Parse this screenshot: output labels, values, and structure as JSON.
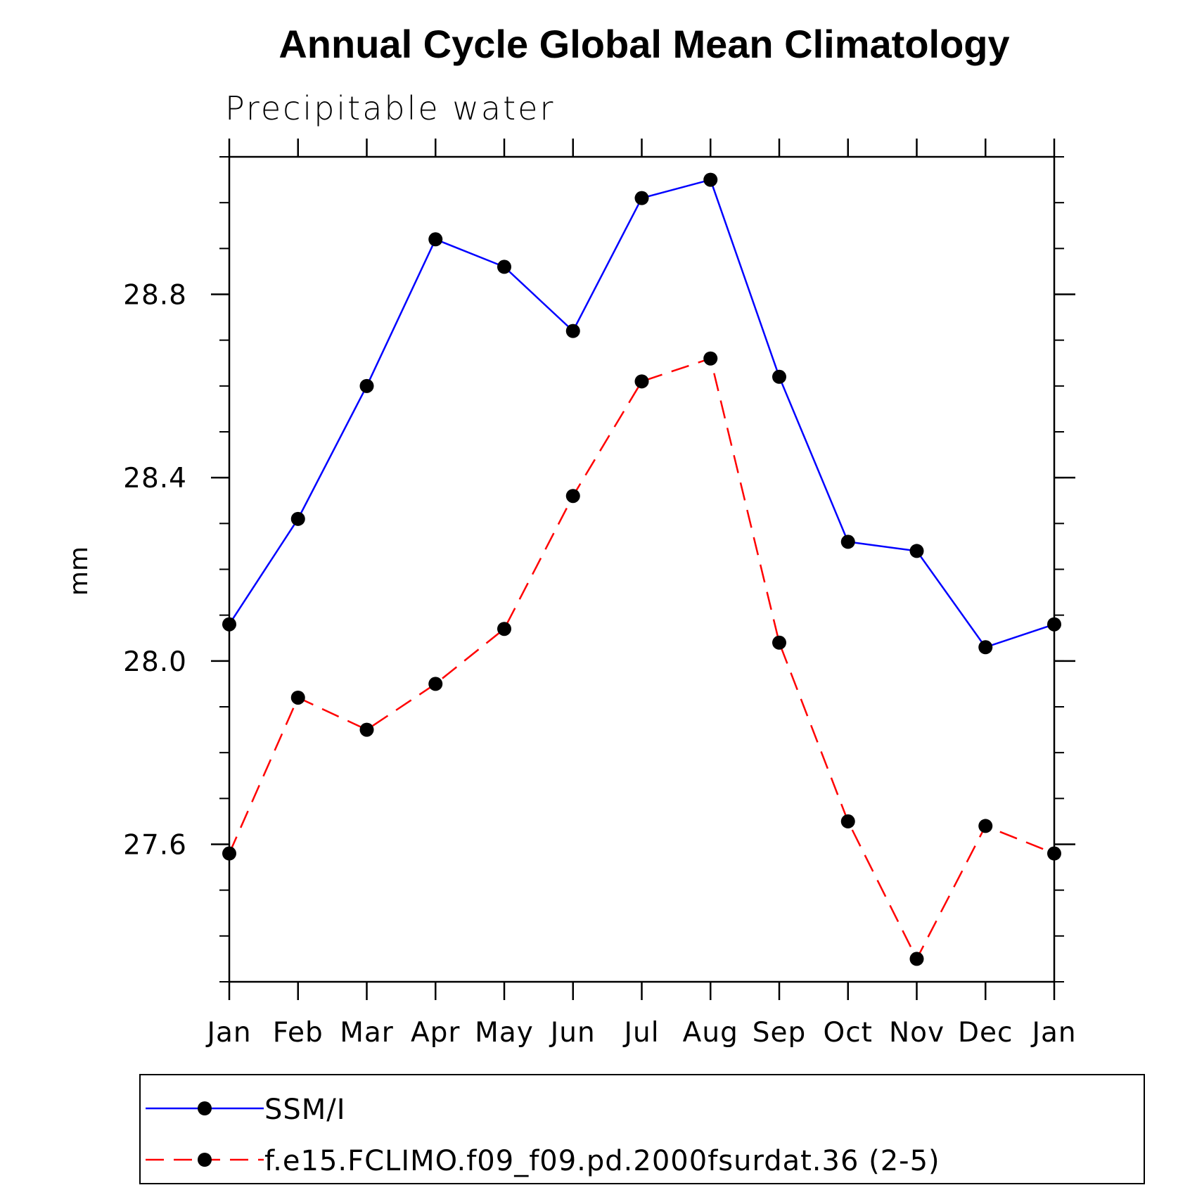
{
  "chart_data": {
    "type": "line",
    "title": "Annual Cycle Global Mean Climatology",
    "subtitle": "Precipitable water",
    "xlabel": "",
    "ylabel": "mm",
    "categories": [
      "Jan",
      "Feb",
      "Mar",
      "Apr",
      "May",
      "Jun",
      "Jul",
      "Aug",
      "Sep",
      "Oct",
      "Nov",
      "Dec",
      "Jan"
    ],
    "ylim": [
      27.3,
      29.1
    ],
    "yticks": [
      27.6,
      28.0,
      28.4,
      28.8
    ],
    "ytick_labels": [
      "27.6",
      "28.0",
      "28.4",
      "28.8"
    ],
    "yminor_step": 0.1,
    "grid": false,
    "legend_position": "bottom",
    "series": [
      {
        "name": "SSM/I",
        "color": "#0000ff",
        "style": "solid",
        "marker": "filled-circle",
        "values": [
          28.08,
          28.31,
          28.6,
          28.92,
          28.86,
          28.72,
          29.01,
          29.05,
          28.62,
          28.26,
          28.24,
          28.03,
          28.08
        ]
      },
      {
        "name": "f.e15.FCLIMO.f09_f09.pd.2000fsurdat.36 (2-5)",
        "color": "#ff0000",
        "style": "dashed",
        "marker": "filled-circle",
        "values": [
          27.58,
          27.92,
          27.85,
          27.95,
          28.07,
          28.36,
          28.61,
          28.66,
          28.04,
          27.65,
          27.35,
          27.64,
          27.58
        ]
      }
    ]
  }
}
